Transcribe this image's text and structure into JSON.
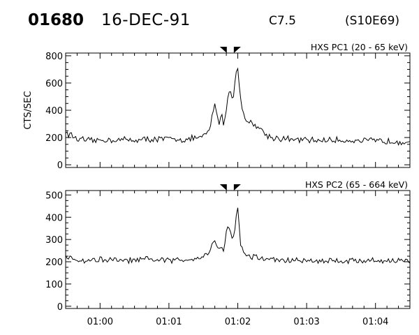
{
  "header": {
    "flare_id": "01680",
    "date": "16-DEC-91",
    "goes_class": "C7.5",
    "location": "(S10E69)"
  },
  "colors": {
    "line": "#000000",
    "background": "#ffffff"
  },
  "chart_data": [
    {
      "type": "line",
      "title": "HXS PC1 (20 - 65 keV)",
      "xlabel": "",
      "ylabel": "CTS/SEC",
      "xlim": [
        "00:59:30",
        "01:04:30"
      ],
      "ylim": [
        -20,
        820
      ],
      "x_ticks": [
        "01:00",
        "01:01",
        "01:02",
        "01:03",
        "01:04"
      ],
      "y_ticks": [
        0,
        200,
        400,
        600,
        800
      ],
      "markers": [
        "01:01:48",
        "01:01:59"
      ],
      "baseline": 180,
      "series": [
        {
          "x": [
            "00:59:30",
            "00:59:40",
            "00:59:50",
            "01:00:00",
            "01:00:15",
            "01:00:30",
            "01:00:45",
            "01:01:00",
            "01:01:15",
            "01:01:30",
            "01:01:35",
            "01:01:40",
            "01:01:44",
            "01:01:46",
            "01:01:48",
            "01:01:50",
            "01:01:52",
            "01:01:54",
            "01:01:56",
            "01:01:58",
            "01:02:00",
            "01:02:02",
            "01:02:04",
            "01:02:06",
            "01:02:10",
            "01:02:15",
            "01:02:20",
            "01:02:25",
            "01:02:30",
            "01:02:45",
            "01:03:00",
            "01:03:30",
            "01:04:00",
            "01:04:30"
          ],
          "values": [
            240,
            190,
            175,
            180,
            185,
            182,
            188,
            190,
            185,
            205,
            250,
            440,
            300,
            380,
            270,
            420,
            520,
            550,
            470,
            650,
            720,
            500,
            420,
            340,
            310,
            300,
            260,
            220,
            200,
            185,
            180,
            180,
            175,
            170
          ]
        }
      ]
    },
    {
      "type": "line",
      "title": "HXS PC2 (65 - 664 keV)",
      "xlabel": "",
      "ylabel": "",
      "xlim": [
        "00:59:30",
        "01:04:30"
      ],
      "ylim": [
        -10,
        520
      ],
      "x_ticks": [
        "01:00",
        "01:01",
        "01:02",
        "01:03",
        "01:04"
      ],
      "y_ticks": [
        0,
        100,
        200,
        300,
        400,
        500
      ],
      "markers": [
        "01:01:48",
        "01:01:59"
      ],
      "baseline": 205,
      "series": [
        {
          "x": [
            "00:59:30",
            "00:59:45",
            "01:00:00",
            "01:00:15",
            "01:00:30",
            "01:00:45",
            "01:01:00",
            "01:01:15",
            "01:01:30",
            "01:01:35",
            "01:01:40",
            "01:01:44",
            "01:01:46",
            "01:01:48",
            "01:01:50",
            "01:01:52",
            "01:01:54",
            "01:01:56",
            "01:01:58",
            "01:02:00",
            "01:02:02",
            "01:02:04",
            "01:02:06",
            "01:02:10",
            "01:02:15",
            "01:02:20",
            "01:02:30",
            "01:02:45",
            "01:03:00",
            "01:03:30",
            "01:04:00",
            "01:04:30"
          ],
          "values": [
            215,
            205,
            210,
            205,
            205,
            210,
            205,
            210,
            225,
            245,
            300,
            250,
            270,
            250,
            330,
            360,
            330,
            300,
            380,
            440,
            300,
            250,
            235,
            225,
            220,
            215,
            210,
            205,
            205,
            205,
            205,
            205
          ]
        }
      ]
    }
  ],
  "axis_labels": [
    "01:00",
    "01:01",
    "01:02",
    "01:03",
    "01:04"
  ]
}
